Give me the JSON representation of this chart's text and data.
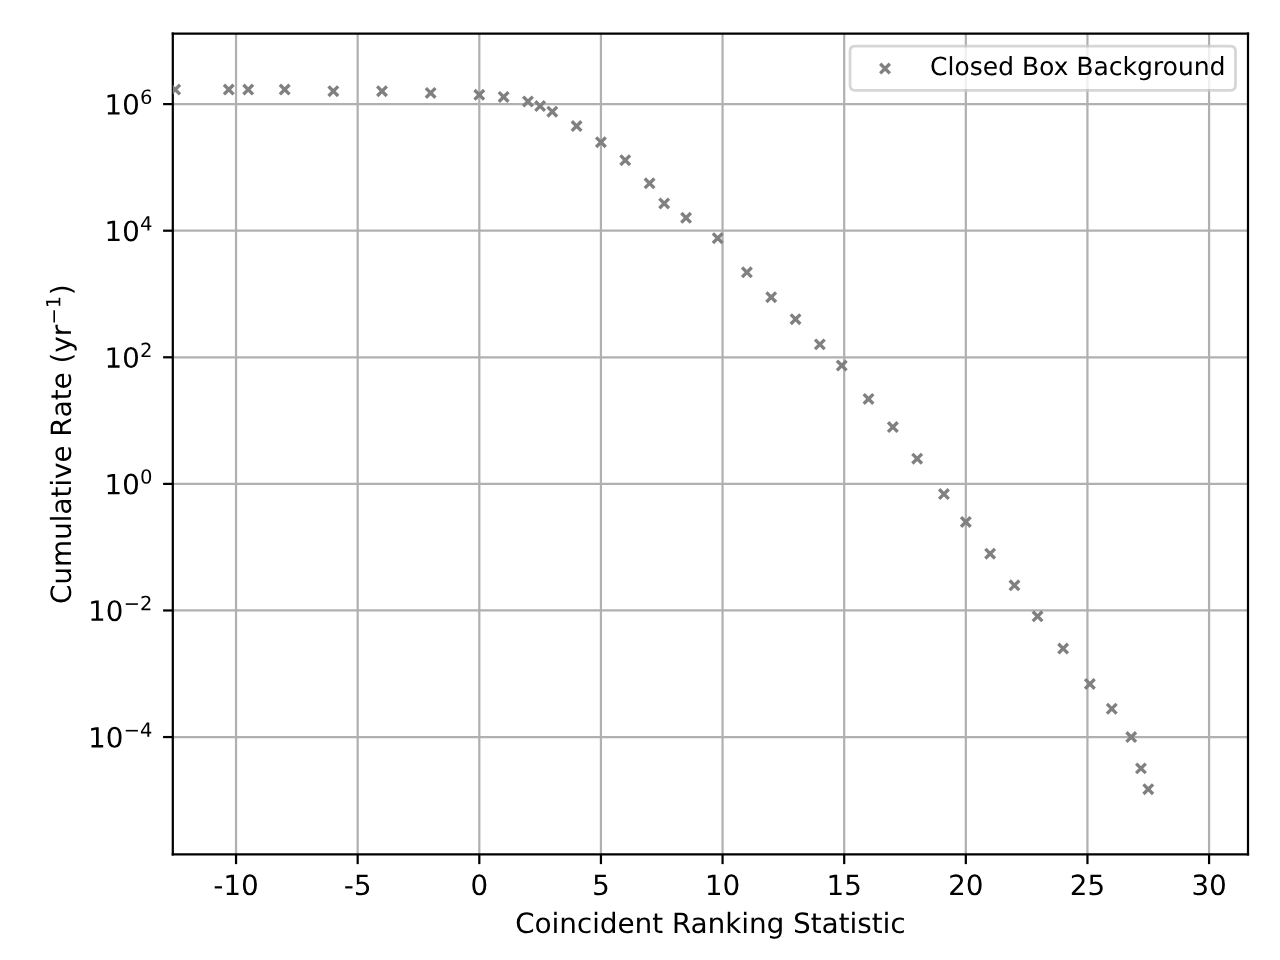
{
  "chart_data": {
    "type": "scatter",
    "xlabel": "Coincident Ranking Statistic",
    "ylabel": "Cumulative Rate (yr$^{−1}$)",
    "log": "y",
    "grid": true,
    "legend": "top right",
    "marker": "cross",
    "xlim": [
      -12.6,
      31.6
    ],
    "xticks": [
      -10,
      -5,
      0,
      5,
      10,
      15,
      20,
      25,
      30
    ],
    "ylim": [
      1.4e-06,
      13000000.0
    ],
    "yticks": [
      {
        "value": 0.0001,
        "label": "10$^{−4}$"
      },
      {
        "value": 0.01,
        "label": "10$^{−2}$"
      },
      {
        "value": 1,
        "label": "10$^{0}$"
      },
      {
        "value": 100,
        "label": "10$^{2}$"
      },
      {
        "value": 10000,
        "label": "10$^{4}$"
      },
      {
        "value": 1000000,
        "label": "10$^{6}$"
      }
    ],
    "series": [
      {
        "name": "Closed Box Background",
        "color": "#808080",
        "x": [
          -12.5,
          -10.3,
          -9.5,
          -8,
          -6,
          -4,
          -2,
          0,
          1,
          2,
          2.5,
          3,
          4,
          5,
          6,
          7,
          7.6,
          8.5,
          9.8,
          11,
          12,
          13,
          14,
          14.9,
          16,
          17,
          18,
          19.1,
          20,
          21,
          22,
          22.95,
          24,
          25.1,
          26,
          26.8,
          27.2,
          27.5
        ],
        "values": [
          1700000.0,
          1700000.0,
          1700000.0,
          1700000.0,
          1600000.0,
          1600000.0,
          1500000.0,
          1400000.0,
          1300000.0,
          1100000.0,
          930000.0,
          760000.0,
          450000.0,
          250000.0,
          130000.0,
          56000.0,
          27000.0,
          16000.0,
          7600.0,
          2200.0,
          890,
          400,
          160,
          74,
          22,
          7.9,
          2.5,
          0.69,
          0.25,
          0.079,
          0.025,
          0.0081,
          0.0025,
          0.00069,
          0.00028,
          0.0001,
          3.2e-05,
          1.5e-05
        ]
      }
    ]
  }
}
